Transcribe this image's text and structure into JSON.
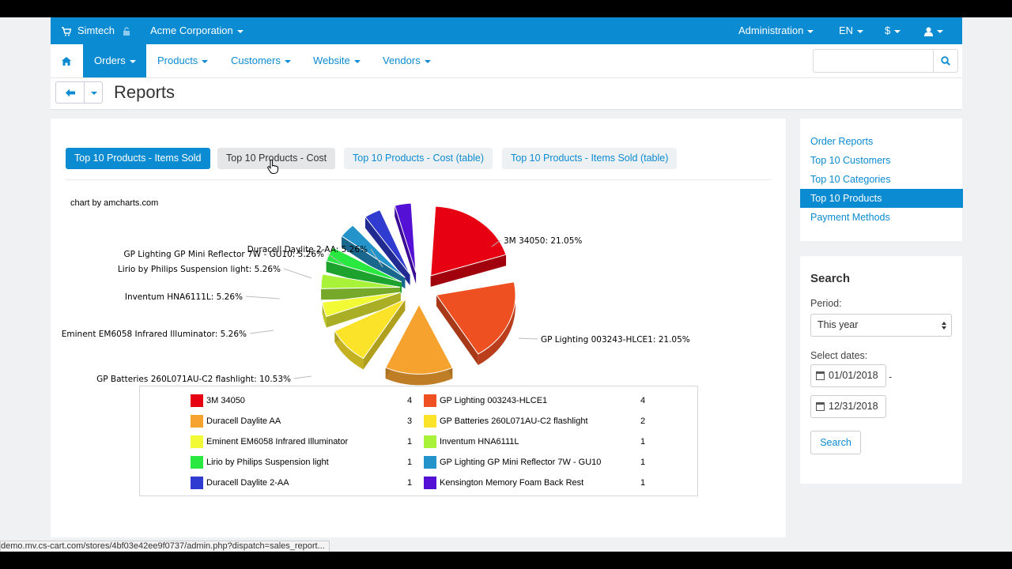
{
  "topbar": {
    "store_name": "Simtech",
    "company": "Acme Corporation",
    "administration": "Administration",
    "language": "EN",
    "currency": "$"
  },
  "nav": {
    "orders": "Orders",
    "products": "Products",
    "customers": "Customers",
    "website": "Website",
    "vendors": "Vendors",
    "search_value": ""
  },
  "page": {
    "title": "Reports"
  },
  "tabs": [
    {
      "label": "Top 10 Products - Items Sold"
    },
    {
      "label": "Top 10 Products - Cost"
    },
    {
      "label": "Top 10 Products - Cost (table)"
    },
    {
      "label": "Top 10 Products - Items Sold (table)"
    }
  ],
  "chart_credit": "chart by amcharts.com",
  "chart_data": {
    "type": "pie",
    "slices": [
      {
        "name": "3M 34050",
        "value": 4,
        "percent": "21.05%",
        "color": "#e60012"
      },
      {
        "name": "GP Lighting 003243-HLCE1",
        "value": 4,
        "percent": "21.05%",
        "color": "#ef5022"
      },
      {
        "name": "Duracell Daylite AA",
        "value": 3,
        "percent": "",
        "color": "#f5a22f"
      },
      {
        "name": "GP Batteries 260L071AU-C2 flashlight",
        "value": 2,
        "percent": "10.53%",
        "color": "#fbe32a"
      },
      {
        "name": "Eminent EM6058 Infrared Illuminator",
        "value": 1,
        "percent": "5.26%",
        "color": "#f2f935"
      },
      {
        "name": "Inventum HNA6111L",
        "value": 1,
        "percent": "5.26%",
        "color": "#a9f23a"
      },
      {
        "name": "Lirio by Philips Suspension light",
        "value": 1,
        "percent": "5.26%",
        "color": "#29e840"
      },
      {
        "name": "GP Lighting GP Mini Reflector 7W - GU10",
        "value": 1,
        "percent": "5.26%",
        "color": "#2493c9"
      },
      {
        "name": "Duracell Daylite 2-AA",
        "value": 1,
        "percent": "5.26%",
        "color": "#2f3ccf"
      },
      {
        "name": "Kensington Memory Foam Back Rest",
        "value": 1,
        "percent": "",
        "color": "#5510d5"
      }
    ],
    "labels": [
      "3M 34050: 21.05%",
      "GP Lighting 003243-HLCE1: 21.05%",
      "GP Batteries 260L071AU-C2 flashlight: 10.53%",
      "Eminent EM6058 Infrared Illuminator: 5.26%",
      "Inventum HNA6111L: 5.26%",
      "Lirio by Philips Suspension light: 5.26%",
      "GP Lighting GP Mini Reflector 7W - GU10: 5.26%",
      "Duracell Daylite 2-AA: 5.26%"
    ],
    "legend": [
      {
        "name": "3M 34050",
        "value": "4",
        "color": "#e60012"
      },
      {
        "name": "GP Lighting 003243-HLCE1",
        "value": "4",
        "color": "#ef5022"
      },
      {
        "name": "Duracell Daylite AA",
        "value": "3",
        "color": "#f5a22f"
      },
      {
        "name": "GP Batteries 260L071AU-C2 flashlight",
        "value": "2",
        "color": "#fbe32a"
      },
      {
        "name": "Eminent EM6058 Infrared Illuminator",
        "value": "1",
        "color": "#f2f935"
      },
      {
        "name": "Inventum HNA6111L",
        "value": "1",
        "color": "#a9f23a"
      },
      {
        "name": "Lirio by Philips Suspension light",
        "value": "1",
        "color": "#29e840"
      },
      {
        "name": "GP Lighting GP Mini Reflector 7W - GU10",
        "value": "1",
        "color": "#2493c9"
      },
      {
        "name": "Duracell Daylite 2-AA",
        "value": "1",
        "color": "#2f3ccf"
      },
      {
        "name": "Kensington Memory Foam Back Rest",
        "value": "1",
        "color": "#5510d5"
      }
    ]
  },
  "sidebar": {
    "links": [
      "Order Reports",
      "Top 10 Customers",
      "Top 10 Categories",
      "Top 10 Products",
      "Payment Methods"
    ],
    "search_title": "Search",
    "period_label": "Period:",
    "period_value": "This year",
    "dates_label": "Select dates:",
    "date_from": "01/01/2018",
    "date_sep": "-",
    "date_to": "12/31/2018",
    "search_button": "Search"
  },
  "status_url": "demo.mv.cs-cart.com/stores/4bf03e42ee9f0737/admin.php?dispatch=sales_report...",
  "colors": {
    "accent": "#0b8bd2"
  }
}
